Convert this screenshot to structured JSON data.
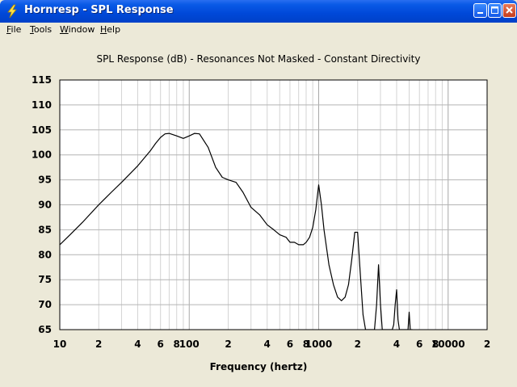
{
  "window": {
    "title": "Hornresp - SPL Response",
    "minimize_label": "minimize",
    "maximize_label": "maximize",
    "close_label": "close"
  },
  "menu": [
    {
      "label": "File",
      "accel": "F",
      "rest": "ile"
    },
    {
      "label": "Tools",
      "accel": "T",
      "rest": "ools"
    },
    {
      "label": "Window",
      "accel": "W",
      "rest": "indow"
    },
    {
      "label": "Help",
      "accel": "H",
      "rest": "elp"
    }
  ],
  "chart_data": {
    "type": "line",
    "title": "SPL Response (dB) - Resonances Not Masked - Constant Directivity",
    "xlabel": "Frequency (hertz)",
    "ylabel": "",
    "x_scale": "log",
    "xlim": [
      10,
      20000
    ],
    "ylim": [
      65,
      115
    ],
    "grid": true,
    "y_ticks": [
      115,
      110,
      105,
      100,
      95,
      90,
      85,
      80,
      75,
      70,
      65
    ],
    "x_tick_labels": [
      {
        "value": 10,
        "label": "10"
      },
      {
        "value": 20,
        "label": "2"
      },
      {
        "value": 40,
        "label": "4"
      },
      {
        "value": 60,
        "label": "6"
      },
      {
        "value": 80,
        "label": "8"
      },
      {
        "value": 100,
        "label": "100"
      },
      {
        "value": 200,
        "label": "2"
      },
      {
        "value": 400,
        "label": "4"
      },
      {
        "value": 600,
        "label": "6"
      },
      {
        "value": 800,
        "label": "8"
      },
      {
        "value": 1000,
        "label": "1000"
      },
      {
        "value": 2000,
        "label": "2"
      },
      {
        "value": 4000,
        "label": "4"
      },
      {
        "value": 6000,
        "label": "6"
      },
      {
        "value": 8000,
        "label": "8"
      },
      {
        "value": 10000,
        "label": "10000"
      },
      {
        "value": 20000,
        "label": "2"
      }
    ],
    "series": [
      {
        "color": "#000000",
        "x": [
          10,
          12,
          15,
          20,
          25,
          30,
          40,
          50,
          55,
          60,
          65,
          70,
          80,
          90,
          100,
          110,
          120,
          140,
          160,
          180,
          200,
          230,
          260,
          300,
          350,
          400,
          450,
          500,
          560,
          600,
          650,
          700,
          760,
          800,
          850,
          900,
          950,
          1000,
          1050,
          1100,
          1200,
          1300,
          1400,
          1500,
          1600,
          1700,
          1800,
          1900,
          2000,
          2100,
          2200,
          2300,
          2400,
          2500,
          2600,
          2700,
          2800,
          2900,
          3000,
          3100,
          3200,
          3300,
          3500,
          3700,
          3800,
          3900,
          4000,
          4100,
          4200,
          4300,
          4500,
          4700,
          4900,
          5000,
          5100,
          5200,
          5300
        ],
        "y": [
          82,
          84,
          86.5,
          90,
          92.5,
          94.5,
          97.8,
          100.8,
          102.3,
          103.5,
          104.2,
          104.3,
          103.8,
          103.3,
          103.8,
          104.3,
          104.2,
          101.5,
          97.5,
          95.5,
          95,
          94.5,
          92.5,
          89.5,
          88,
          86,
          85,
          84,
          83.5,
          82.5,
          82.5,
          82,
          82,
          82.5,
          83.5,
          85.5,
          89,
          94,
          90,
          85,
          78,
          74,
          71.5,
          70.8,
          71.5,
          74,
          79,
          84.5,
          84.5,
          76,
          68,
          65,
          65,
          65,
          65,
          65,
          70,
          78,
          70,
          65,
          65,
          65,
          65,
          65,
          66,
          70,
          73,
          67,
          65,
          65,
          65,
          65,
          65,
          68.5,
          65,
          65,
          65
        ]
      }
    ]
  }
}
